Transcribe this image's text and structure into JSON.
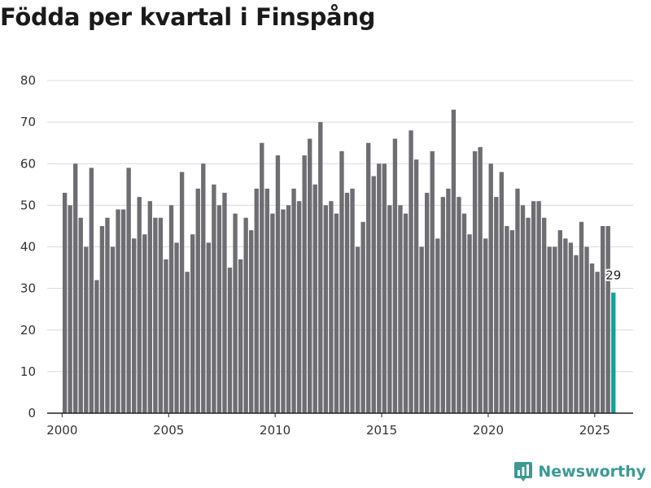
{
  "chart_data": {
    "type": "bar",
    "title": "Födda per kvartal i Finspång",
    "xlabel": "",
    "ylabel": "",
    "ylim": [
      0,
      80
    ],
    "yticks": [
      0,
      10,
      20,
      30,
      40,
      50,
      60,
      70,
      80
    ],
    "xticks": [
      "2000",
      "2005",
      "2010",
      "2015",
      "2020",
      "2025"
    ],
    "xlim": [
      1999.3,
      2026.8
    ],
    "grid": true,
    "bar_color": "#6d6d72",
    "highlight_color": "#14a09a",
    "highlight_index": 103,
    "highlight_label": "29",
    "start_year": 2000,
    "values": [
      53,
      50,
      60,
      47,
      40,
      59,
      32,
      45,
      47,
      40,
      49,
      49,
      59,
      42,
      52,
      43,
      51,
      47,
      47,
      37,
      50,
      41,
      58,
      34,
      43,
      54,
      60,
      41,
      55,
      50,
      53,
      35,
      48,
      37,
      47,
      44,
      54,
      65,
      54,
      48,
      62,
      49,
      50,
      54,
      51,
      62,
      66,
      55,
      70,
      50,
      51,
      48,
      63,
      53,
      54,
      40,
      46,
      65,
      57,
      60,
      60,
      50,
      66,
      50,
      48,
      68,
      61,
      40,
      53,
      63,
      42,
      52,
      54,
      73,
      52,
      48,
      43,
      63,
      64,
      42,
      60,
      52,
      58,
      45,
      44,
      54,
      50,
      47,
      51,
      51,
      47,
      40,
      40,
      44,
      42,
      41,
      38,
      46,
      40,
      36,
      34,
      45,
      45,
      29
    ]
  },
  "brand": {
    "name": "Newsworthy",
    "icon": "newsworthy-logo-icon",
    "color": "#3c9a93"
  }
}
